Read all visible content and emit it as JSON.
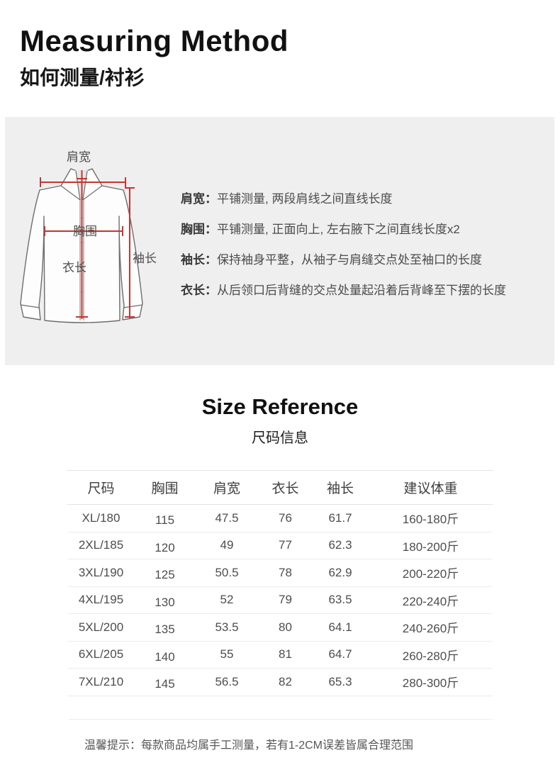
{
  "header": {
    "title": "Measuring Method",
    "subtitle": "如何测量/衬衫"
  },
  "diagram": {
    "labels": {
      "shoulder_width": "肩宽",
      "chest": "胸围",
      "garment_length": "衣长",
      "sleeve_length": "袖长"
    },
    "instructions": [
      {
        "label": "肩宽：",
        "text": "平铺测量, 两段肩线之间直线长度"
      },
      {
        "label": "胸围：",
        "text": "平铺测量, 正面向上, 左右腋下之间直线长度x2"
      },
      {
        "label": "袖长：",
        "text": "保持袖身平整，从袖子与肩缝交点处至袖口的长度"
      },
      {
        "label": "衣长：",
        "text": "从后领口后背缝的交点处量起沿着后背峰至下摆的长度"
      }
    ],
    "colors": {
      "measure_line_red": "#c23730",
      "shirt_outline": "#6e6e6e",
      "panel_background": "#f0efef"
    }
  },
  "size_reference": {
    "title": "Size Reference",
    "subtitle": "尺码信息"
  },
  "table": {
    "headers": [
      "尺码",
      "胸围",
      "肩宽",
      "衣长",
      "袖长",
      "建议体重"
    ],
    "rows": [
      [
        "XL/180",
        "115",
        "47.5",
        "76",
        "61.7",
        "160-180斤"
      ],
      [
        "2XL/185",
        "120",
        "49",
        "77",
        "62.3",
        "180-200斤"
      ],
      [
        "3XL/190",
        "125",
        "50.5",
        "78",
        "62.9",
        "200-220斤"
      ],
      [
        "4XL/195",
        "130",
        "52",
        "79",
        "63.5",
        "220-240斤"
      ],
      [
        "5XL/200",
        "135",
        "53.5",
        "80",
        "64.1",
        "240-260斤"
      ],
      [
        "6XL/205",
        "140",
        "55",
        "81",
        "64.7",
        "260-280斤"
      ],
      [
        "7XL/210",
        "145",
        "56.5",
        "82",
        "65.3",
        "280-300斤"
      ]
    ]
  },
  "footer": {
    "note": "温馨提示：每款商品均属手工测量，若有1-2CM误差皆属合理范围"
  }
}
